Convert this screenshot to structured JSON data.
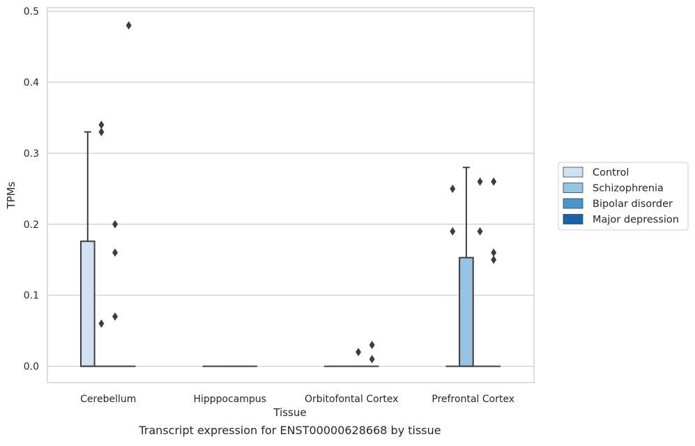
{
  "chart_data": {
    "type": "box",
    "title": "",
    "caption": "Transcript expression for ENST00000628668 by tissue",
    "xlabel": "Tissue",
    "ylabel": "TPMs",
    "categories": [
      "Cerebellum",
      "Hipppocampus",
      "Orbitofontal Cortex",
      "Prefrontal Cortex"
    ],
    "ylim": [
      -0.023,
      0.505
    ],
    "yticks": [
      0.0,
      0.1,
      0.2,
      0.3,
      0.4,
      0.5
    ],
    "ytick_labels": [
      "0.0",
      "0.1",
      "0.2",
      "0.3",
      "0.4",
      "0.5"
    ],
    "grid": "horizontal",
    "legend_position": "right",
    "series": [
      {
        "name": "Control",
        "color": "#d0e1f2",
        "boxes": [
          {
            "category": "Cerebellum",
            "q1": 0.0,
            "median": 0.0,
            "q3": 0.176,
            "whisker_low": 0.0,
            "whisker_high": 0.33,
            "outliers": []
          },
          {
            "category": "Hipppocampus",
            "q1": 0.0,
            "median": 0.0,
            "q3": 0.0,
            "whisker_low": 0.0,
            "whisker_high": 0.0,
            "outliers": []
          },
          {
            "category": "Orbitofontal Cortex",
            "q1": 0.0,
            "median": 0.0,
            "q3": 0.0,
            "whisker_low": 0.0,
            "whisker_high": 0.0,
            "outliers": []
          },
          {
            "category": "Prefrontal Cortex",
            "q1": 0.0,
            "median": 0.0,
            "q3": 0.0,
            "whisker_low": 0.0,
            "whisker_high": 0.0,
            "outliers": [
              0.25,
              0.19
            ]
          }
        ]
      },
      {
        "name": "Schizophrenia",
        "color": "#94c4df",
        "boxes": [
          {
            "category": "Cerebellum",
            "q1": 0.0,
            "median": 0.0,
            "q3": 0.0,
            "whisker_low": 0.0,
            "whisker_high": 0.0,
            "outliers": [
              0.34,
              0.33,
              0.06
            ]
          },
          {
            "category": "Hipppocampus",
            "q1": 0.0,
            "median": 0.0,
            "q3": 0.0,
            "whisker_low": 0.0,
            "whisker_high": 0.0,
            "outliers": []
          },
          {
            "category": "Orbitofontal Cortex",
            "q1": 0.0,
            "median": 0.0,
            "q3": 0.0,
            "whisker_low": 0.0,
            "whisker_high": 0.0,
            "outliers": []
          },
          {
            "category": "Prefrontal Cortex",
            "q1": 0.0,
            "median": 0.0,
            "q3": 0.153,
            "whisker_low": 0.0,
            "whisker_high": 0.28,
            "outliers": []
          }
        ]
      },
      {
        "name": "Bipolar disorder",
        "color": "#4a98c9",
        "boxes": [
          {
            "category": "Cerebellum",
            "q1": 0.0,
            "median": 0.0,
            "q3": 0.0,
            "whisker_low": 0.0,
            "whisker_high": 0.0,
            "outliers": [
              0.2,
              0.16,
              0.07
            ]
          },
          {
            "category": "Hipppocampus",
            "q1": 0.0,
            "median": 0.0,
            "q3": 0.0,
            "whisker_low": 0.0,
            "whisker_high": 0.0,
            "outliers": []
          },
          {
            "category": "Orbitofontal Cortex",
            "q1": 0.0,
            "median": 0.0,
            "q3": 0.0,
            "whisker_low": 0.0,
            "whisker_high": 0.0,
            "outliers": [
              0.02
            ]
          },
          {
            "category": "Prefrontal Cortex",
            "q1": 0.0,
            "median": 0.0,
            "q3": 0.0,
            "whisker_low": 0.0,
            "whisker_high": 0.0,
            "outliers": [
              0.26,
              0.19
            ]
          }
        ]
      },
      {
        "name": "Major depression",
        "color": "#1764ab",
        "boxes": [
          {
            "category": "Cerebellum",
            "q1": 0.0,
            "median": 0.0,
            "q3": 0.0,
            "whisker_low": 0.0,
            "whisker_high": 0.0,
            "outliers": [
              0.48
            ]
          },
          {
            "category": "Hipppocampus",
            "q1": 0.0,
            "median": 0.0,
            "q3": 0.0,
            "whisker_low": 0.0,
            "whisker_high": 0.0,
            "outliers": []
          },
          {
            "category": "Orbitofontal Cortex",
            "q1": 0.0,
            "median": 0.0,
            "q3": 0.0,
            "whisker_low": 0.0,
            "whisker_high": 0.0,
            "outliers": [
              0.03,
              0.01
            ]
          },
          {
            "category": "Prefrontal Cortex",
            "q1": 0.0,
            "median": 0.0,
            "q3": 0.0,
            "whisker_low": 0.0,
            "whisker_high": 0.0,
            "outliers": [
              0.26,
              0.16,
              0.15
            ]
          }
        ]
      }
    ]
  }
}
